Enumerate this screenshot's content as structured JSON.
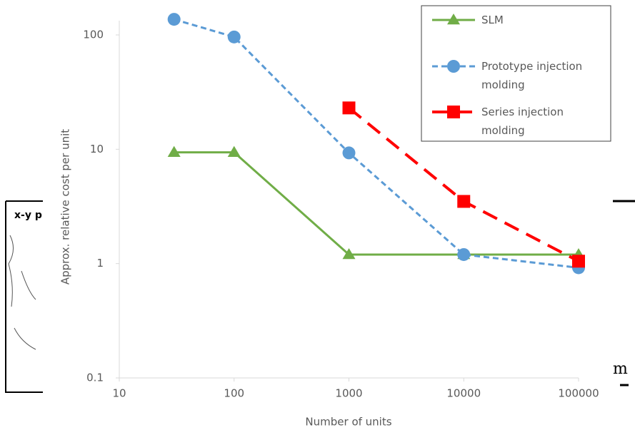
{
  "chart_data": {
    "type": "line",
    "xlabel": "Number of units",
    "ylabel": "Approx. relative cost per unit",
    "xscale": "log",
    "yscale": "log",
    "xlim": [
      10,
      100000
    ],
    "xticks": [
      10,
      100,
      1000,
      10000,
      100000
    ],
    "ylim": [
      0.1,
      100
    ],
    "yticks": [
      0.1,
      1,
      10,
      100
    ],
    "legend": "upper right",
    "series": [
      {
        "name": "SLM",
        "color": "#70ad47",
        "marker": "triangle",
        "dash": "solid",
        "x": [
          30,
          100,
          1000,
          10000,
          100000
        ],
        "values": [
          9.4,
          9.4,
          1.2,
          1.2,
          1.2
        ]
      },
      {
        "name": "Prototype injection molding",
        "color": "#5b9bd5",
        "marker": "circle",
        "dash": "dashed",
        "x": [
          30,
          100,
          1000,
          10000,
          100000
        ],
        "values": [
          137,
          96,
          9.3,
          1.2,
          0.92
        ]
      },
      {
        "name": "Series injection molding",
        "color": "#ff0000",
        "marker": "square",
        "dash": "longdash",
        "x": [
          1000,
          10000,
          100000
        ],
        "values": [
          23,
          3.5,
          1.05
        ]
      }
    ]
  },
  "background_texts": [
    "x-y p",
    "m"
  ]
}
